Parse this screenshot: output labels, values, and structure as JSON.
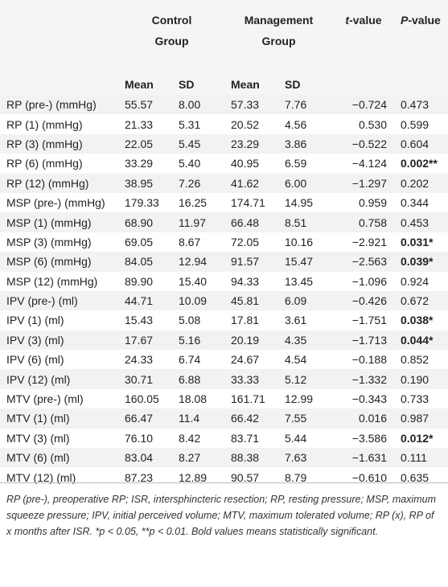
{
  "table": {
    "header": {
      "control": "Control Group",
      "management": "Management Group",
      "t": "t-value",
      "p": "P-value",
      "subheaders": [
        "Mean",
        "SD",
        "Mean",
        "SD"
      ]
    },
    "rows": [
      [
        "RP (pre-) (mmHg)",
        "55.57",
        "8.00",
        "57.33",
        "7.76",
        "−0.724",
        "0.473"
      ],
      [
        "RP (1) (mmHg)",
        "21.33",
        "5.31",
        "20.52",
        "4.56",
        "0.530",
        "0.599"
      ],
      [
        "RP (3) (mmHg)",
        "22.05",
        "5.45",
        "23.29",
        "3.86",
        "−0.522",
        "0.604"
      ],
      [
        "RP (6) (mmHg)",
        "33.29",
        "5.40",
        "40.95",
        "6.59",
        "−4.124",
        "0.002**"
      ],
      [
        "RP (12) (mmHg)",
        "38.95",
        "7.26",
        "41.62",
        "6.00",
        "−1.297",
        "0.202"
      ],
      [
        "MSP (pre-) (mmHg)",
        "179.33",
        "16.25",
        "174.71",
        "14.95",
        "0.959",
        "0.344"
      ],
      [
        "MSP (1) (mmHg)",
        "68.90",
        "11.97",
        "66.48",
        "8.51",
        "0.758",
        "0.453"
      ],
      [
        "MSP (3) (mmHg)",
        "69.05",
        "8.67",
        "72.05",
        "10.16",
        "−2.921",
        "0.031*"
      ],
      [
        "MSP (6) (mmHg)",
        "84.05",
        "12.94",
        "91.57",
        "15.47",
        "−2.563",
        "0.039*"
      ],
      [
        "MSP (12) (mmHg)",
        "89.90",
        "15.40",
        "94.33",
        "13.45",
        "−1.096",
        "0.924"
      ],
      [
        "IPV (pre-) (ml)",
        "44.71",
        "10.09",
        "45.81",
        "6.09",
        "−0.426",
        "0.672"
      ],
      [
        "IPV (1) (ml)",
        "15.43",
        "5.08",
        "17.81",
        "3.61",
        "−1.751",
        "0.038*"
      ],
      [
        "IPV (3) (ml)",
        "17.67",
        "5.16",
        "20.19",
        "4.35",
        "−1.713",
        "0.044*"
      ],
      [
        "IPV (6) (ml)",
        "24.33",
        "6.74",
        "24.67",
        "4.54",
        "−0.188",
        "0.852"
      ],
      [
        "IPV (12) (ml)",
        "30.71",
        "6.88",
        "33.33",
        "5.12",
        "−1.332",
        "0.190"
      ],
      [
        "MTV (pre-) (ml)",
        "160.05",
        "18.08",
        "161.71",
        "12.99",
        "−0.343",
        "0.733"
      ],
      [
        "MTV (1) (ml)",
        "66.47",
        "11.4",
        "66.42",
        "7.55",
        "0.016",
        "0.987"
      ],
      [
        "MTV (3) (ml)",
        "76.10",
        "8.42",
        "83.71",
        "5.44",
        "−3.586",
        "0.012*"
      ],
      [
        "MTV (6) (ml)",
        "83.04",
        "8.27",
        "88.38",
        "7.63",
        "−1.631",
        "0.111"
      ],
      [
        "MTV (12) (ml)",
        "87.23",
        "12.89",
        "90.57",
        "8.79",
        "−0.610",
        "0.635"
      ]
    ]
  },
  "footnote": "RP (pre-), preoperative RP; ISR, intersphincteric resection; RP, resting pressure; MSP, maximum squeeze pressure; IPV, initial perceived volume; MTV, maximum tolerated volume; RP (x), RP of x months after ISR. *p < 0.05, **p < 0.01. Bold values means statistically significant."
}
